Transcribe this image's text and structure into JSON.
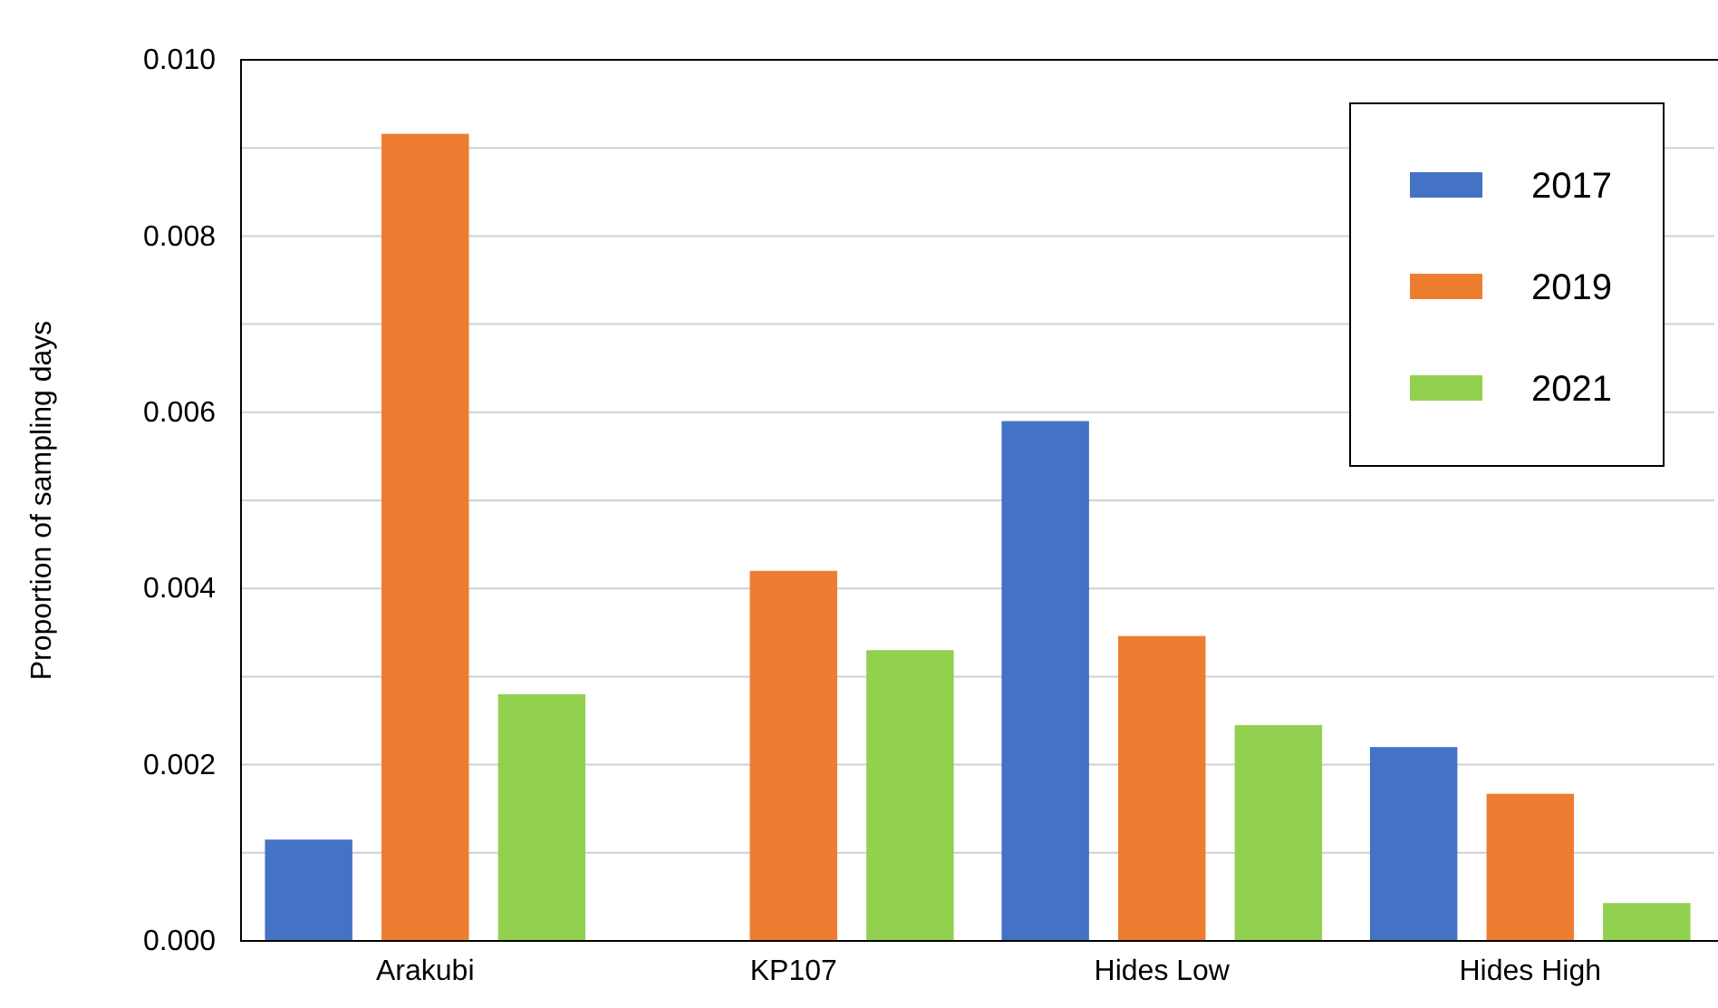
{
  "chart_data": {
    "type": "bar",
    "ylabel": "Proportion of sampling days",
    "categories": [
      "Arakubi",
      "KP107",
      "Hides Low",
      "Hides High"
    ],
    "series": [
      {
        "name": "2017",
        "color": "#4472c4",
        "values": [
          0.00115,
          null,
          0.0059,
          0.0022
        ]
      },
      {
        "name": "2019",
        "color": "#ed7d31",
        "values": [
          0.00916,
          0.0042,
          0.00346,
          0.00167
        ]
      },
      {
        "name": "2021",
        "color": "#92d050",
        "values": [
          0.0028,
          0.0033,
          0.00245,
          0.00043
        ]
      }
    ],
    "ylim": [
      0,
      0.01
    ],
    "yticks": [
      {
        "value": 0,
        "label": "0.000"
      },
      {
        "value": 0.001,
        "label": null
      },
      {
        "value": 0.002,
        "label": "0.002"
      },
      {
        "value": 0.003,
        "label": null
      },
      {
        "value": 0.004,
        "label": "0.004"
      },
      {
        "value": 0.005,
        "label": null
      },
      {
        "value": 0.006,
        "label": "0.006"
      },
      {
        "value": 0.007,
        "label": null
      },
      {
        "value": 0.008,
        "label": "0.008"
      },
      {
        "value": 0.009,
        "label": null
      },
      {
        "value": 0.01,
        "label": "0.010"
      }
    ],
    "grid": "y",
    "legend": "top right"
  }
}
